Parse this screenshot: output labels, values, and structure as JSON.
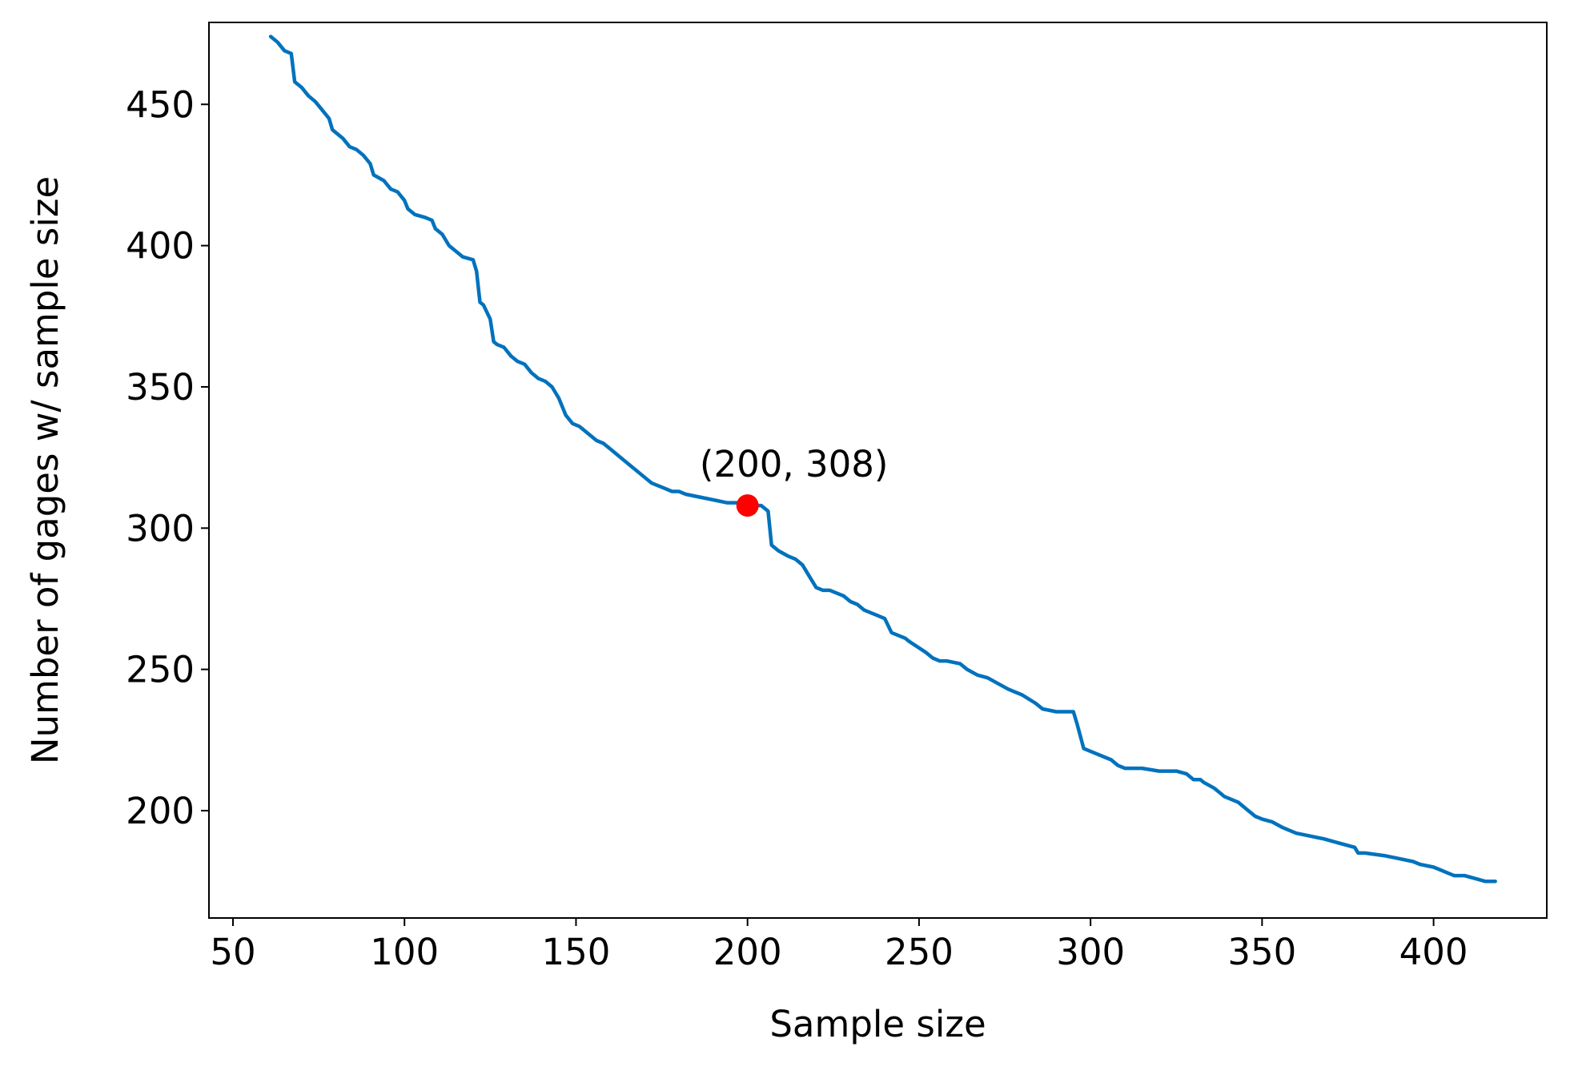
{
  "chart_data": {
    "type": "line",
    "title": "",
    "xlabel": "Sample size",
    "ylabel": "Number of gages w/ sample size",
    "xlim": [
      43,
      433
    ],
    "ylim": [
      162,
      479
    ],
    "xticks": [
      50,
      100,
      150,
      200,
      250,
      300,
      350,
      400
    ],
    "yticks": [
      200,
      250,
      300,
      350,
      400,
      450
    ],
    "grid": false,
    "legend": "none",
    "series": [
      {
        "color": "#0072bd",
        "x": [
          61,
          63,
          65,
          67,
          68,
          70,
          72,
          74,
          76,
          78,
          79,
          82,
          84,
          86,
          88,
          90,
          91,
          94,
          96,
          98,
          100,
          101,
          103,
          106,
          108,
          109,
          111,
          113,
          115,
          117,
          120,
          121,
          122,
          123,
          125,
          126,
          127,
          129,
          131,
          133,
          135,
          137,
          139,
          141,
          143,
          145,
          147,
          149,
          151,
          153,
          156,
          158,
          160,
          162,
          164,
          166,
          168,
          170,
          172,
          174,
          176,
          178,
          180,
          182,
          186,
          190,
          194,
          198,
          200,
          202,
          204,
          206,
          207,
          209,
          212,
          214,
          216,
          218,
          220,
          222,
          224,
          226,
          228,
          230,
          232,
          234,
          236,
          238,
          240,
          242,
          244,
          246,
          247,
          252,
          254,
          256,
          258,
          262,
          264,
          267,
          270,
          273,
          276,
          280,
          284,
          286,
          290,
          294,
          295,
          296,
          298,
          300,
          304,
          306,
          308,
          310,
          312,
          315,
          320,
          325,
          328,
          330,
          332,
          333,
          336,
          338,
          339,
          343,
          345,
          346,
          348,
          350,
          353,
          356,
          358,
          360,
          364,
          368,
          371,
          374,
          377,
          378,
          380,
          386,
          390,
          394,
          396,
          400,
          402,
          404,
          406,
          409,
          412,
          415,
          418
        ],
        "y": [
          474,
          472,
          469,
          468,
          458,
          456,
          453,
          451,
          448,
          445,
          441,
          438,
          435,
          434,
          432,
          429,
          425,
          423,
          420,
          419,
          416,
          413,
          411,
          410,
          409,
          406,
          404,
          400,
          398,
          396,
          395,
          391,
          380,
          379,
          374,
          366,
          365,
          364,
          361,
          359,
          358,
          355,
          353,
          352,
          350,
          346,
          340,
          337,
          336,
          334,
          331,
          330,
          328,
          326,
          324,
          322,
          320,
          318,
          316,
          315,
          314,
          313,
          313,
          312,
          311,
          310,
          309,
          309,
          308,
          308,
          308,
          306,
          294,
          292,
          290,
          289,
          287,
          283,
          279,
          278,
          278,
          277,
          276,
          274,
          273,
          271,
          270,
          269,
          268,
          263,
          262,
          261,
          260,
          256,
          254,
          253,
          253,
          252,
          250,
          248,
          247,
          245,
          243,
          241,
          238,
          236,
          235,
          235,
          235,
          231,
          222,
          221,
          219,
          218,
          216,
          215,
          215,
          215,
          214,
          214,
          213,
          211,
          211,
          210,
          208,
          206,
          205,
          203,
          201,
          200,
          198,
          197,
          196,
          194,
          193,
          192,
          191,
          190,
          189,
          188,
          187,
          185,
          185,
          184,
          183,
          182,
          181,
          180,
          179,
          178,
          177,
          177,
          176,
          175,
          175
        ]
      }
    ],
    "highlight": {
      "x": 200,
      "y": 308,
      "color": "#ff0000",
      "label": "(200, 308)"
    }
  }
}
